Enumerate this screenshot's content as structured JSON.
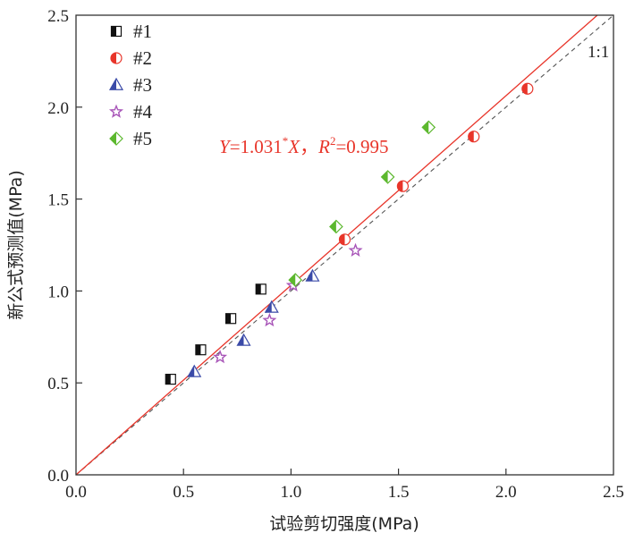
{
  "chart_data": {
    "type": "scatter",
    "xlabel": "试验剪切强度(MPa)",
    "ylabel": "新公式预测值(MPa)",
    "xlim": [
      0.0,
      2.5
    ],
    "ylim": [
      0.0,
      2.5
    ],
    "xticks": [
      "0.0",
      "0.5",
      "1.0",
      "1.5",
      "2.0",
      "2.5"
    ],
    "yticks": [
      "0.0",
      "0.5",
      "1.0",
      "1.5",
      "2.0",
      "2.5"
    ],
    "grid": false,
    "legend_position": "top-left",
    "series": [
      {
        "name": "#1",
        "marker": "square-half",
        "color": "#111111",
        "x": [
          0.44,
          0.58,
          0.72,
          0.86
        ],
        "y": [
          0.52,
          0.68,
          0.85,
          1.01
        ]
      },
      {
        "name": "#2",
        "marker": "circle-half",
        "color": "#e8352a",
        "x": [
          1.25,
          1.52,
          1.85,
          2.1
        ],
        "y": [
          1.28,
          1.57,
          1.84,
          2.1
        ]
      },
      {
        "name": "#3",
        "marker": "triangle-half",
        "color": "#3a4aa8",
        "x": [
          0.55,
          0.78,
          0.91,
          1.1
        ],
        "y": [
          0.56,
          0.73,
          0.91,
          1.08
        ]
      },
      {
        "name": "#4",
        "marker": "star",
        "color": "#a855b8",
        "x": [
          0.67,
          0.9,
          1.01,
          1.3
        ],
        "y": [
          0.64,
          0.84,
          1.03,
          1.22
        ]
      },
      {
        "name": "#5",
        "marker": "diamond-half",
        "color": "#5cb82e",
        "x": [
          1.02,
          1.21,
          1.45,
          1.64
        ],
        "y": [
          1.06,
          1.35,
          1.62,
          1.89
        ]
      }
    ],
    "fit_line": {
      "slope": 1.031,
      "color": "#e8352a",
      "equation": {
        "y_var": "Y",
        "eq": "=1.031",
        "star": "*",
        "x_var": "X",
        "sep": "，",
        "r_var": "R",
        "r_sup": "2",
        "r_val": "=0.995"
      }
    },
    "reference_line": {
      "slope": 1.0,
      "label": "1:1",
      "color": "#555555"
    }
  }
}
